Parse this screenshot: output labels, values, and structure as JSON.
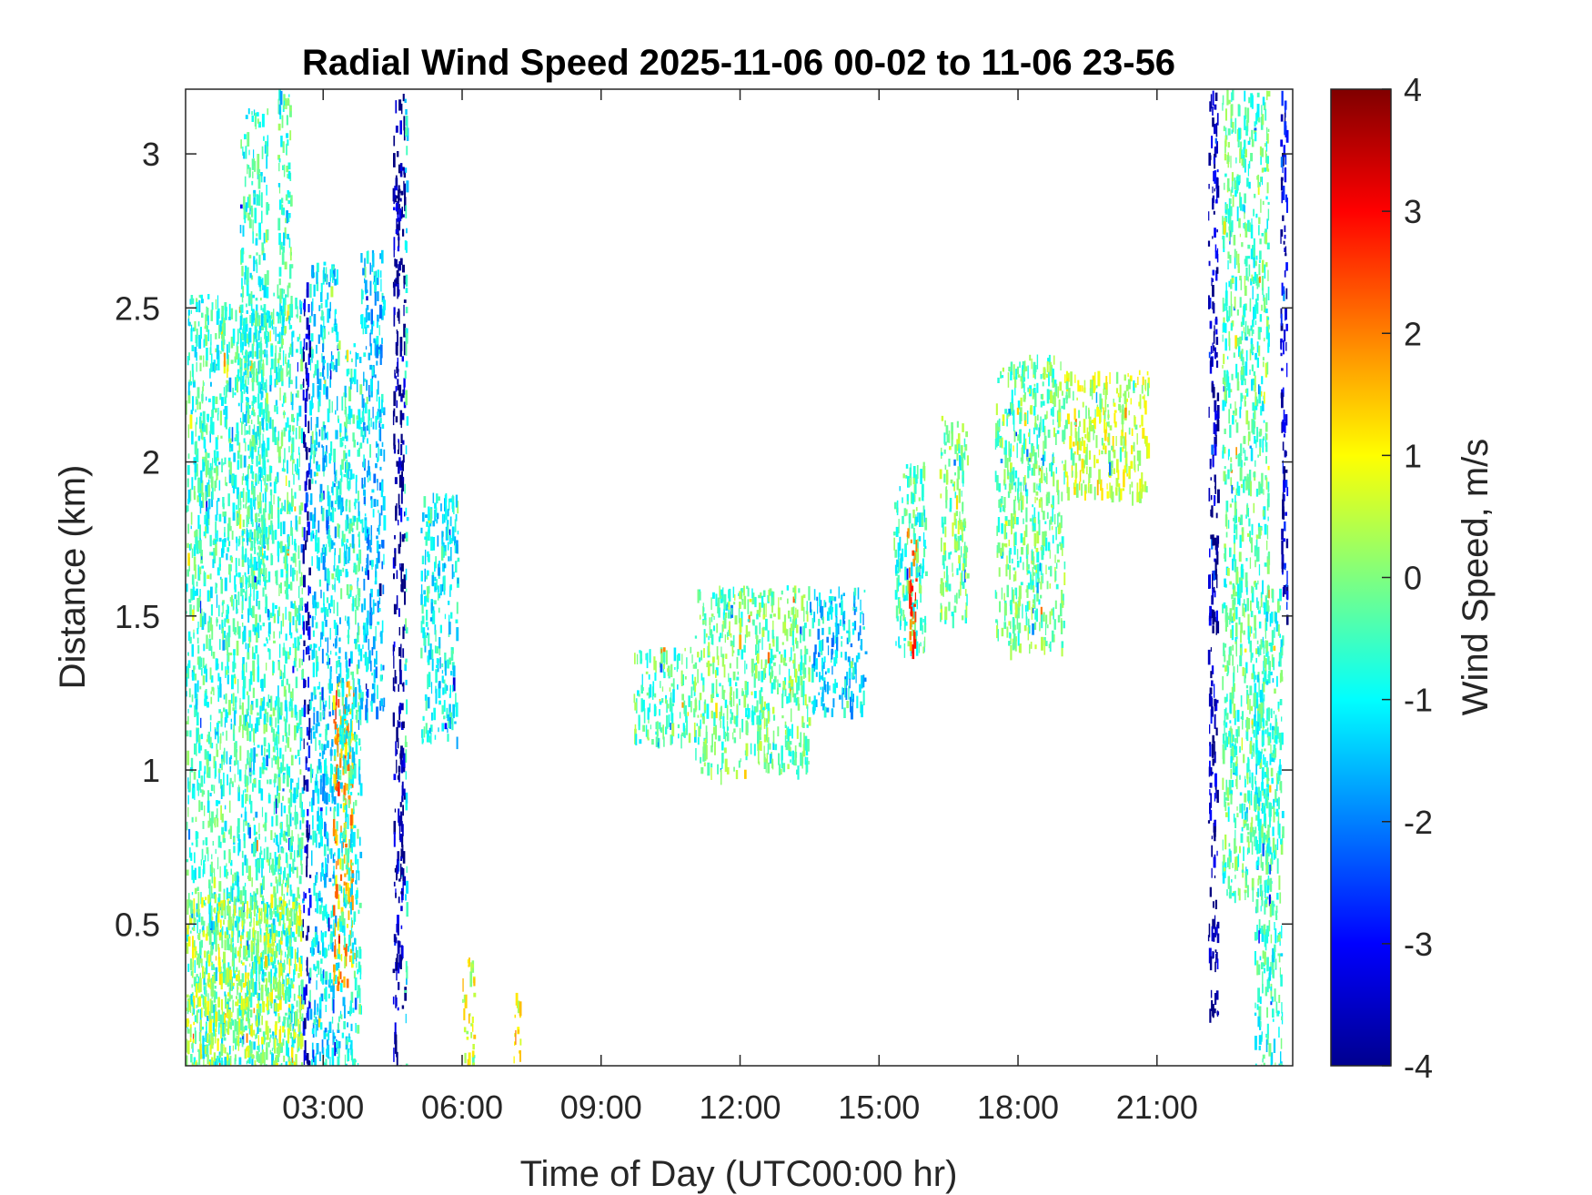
{
  "chart_data": {
    "type": "heatmap",
    "title": "Radial Wind Speed 2025-11-06 00-02 to 11-06 23-56",
    "xlabel": "Time of Day (UTC00:00 hr)",
    "ylabel": "Distance (km)",
    "xlim": [
      0.03,
      23.93
    ],
    "ylim": [
      0.04,
      3.21
    ],
    "x_ticks": [
      {
        "value": 3,
        "label": "03:00"
      },
      {
        "value": 6,
        "label": "06:00"
      },
      {
        "value": 9,
        "label": "09:00"
      },
      {
        "value": 12,
        "label": "12:00"
      },
      {
        "value": 15,
        "label": "15:00"
      },
      {
        "value": 18,
        "label": "18:00"
      },
      {
        "value": 21,
        "label": "21:00"
      }
    ],
    "y_ticks": [
      {
        "value": 0.5,
        "label": "0.5"
      },
      {
        "value": 1,
        "label": "1"
      },
      {
        "value": 1.5,
        "label": "1.5"
      },
      {
        "value": 2,
        "label": "2"
      },
      {
        "value": 2.5,
        "label": "2.5"
      },
      {
        "value": 3,
        "label": "3"
      }
    ],
    "colorbar": {
      "label": "Wind Speed, m/s",
      "colormap": "jet",
      "range": [
        -4,
        4
      ],
      "ticks": [
        {
          "value": 4,
          "label": "4"
        },
        {
          "value": 3,
          "label": "3"
        },
        {
          "value": 2,
          "label": "2"
        },
        {
          "value": 1,
          "label": "1"
        },
        {
          "value": 0,
          "label": "0"
        },
        {
          "value": -1,
          "label": "-1"
        },
        {
          "value": -2,
          "label": "-2"
        },
        {
          "value": -3,
          "label": "-3"
        },
        {
          "value": -4,
          "label": "-4"
        }
      ]
    },
    "regions": [
      {
        "t0": 0.03,
        "t1": 2.55,
        "d0": 0.04,
        "d1": 2.55,
        "speed": -0.6
      },
      {
        "t0": 0.03,
        "t1": 2.55,
        "d0": 0.04,
        "d1": 0.6,
        "speed": 0.4
      },
      {
        "t0": 1.2,
        "t1": 1.8,
        "d0": 1.6,
        "d1": 3.15,
        "speed": -0.7
      },
      {
        "t0": 2.0,
        "t1": 2.3,
        "d0": 2.3,
        "d1": 3.21,
        "speed": -0.5
      },
      {
        "t0": 2.55,
        "t1": 2.7,
        "d0": 0.04,
        "d1": 2.6,
        "speed": -3.4
      },
      {
        "t0": 2.7,
        "t1": 3.3,
        "d0": 0.04,
        "d1": 2.65,
        "speed": -1.2
      },
      {
        "t0": 3.2,
        "t1": 3.65,
        "d0": 0.3,
        "d1": 1.3,
        "speed": 1.6
      },
      {
        "t0": 3.3,
        "t1": 3.8,
        "d0": 0.04,
        "d1": 2.4,
        "speed": -0.8
      },
      {
        "t0": 3.8,
        "t1": 4.3,
        "d0": 1.2,
        "d1": 2.7,
        "speed": -1.4
      },
      {
        "t0": 4.5,
        "t1": 4.75,
        "d0": 0.04,
        "d1": 3.21,
        "speed": -3.8
      },
      {
        "t0": 4.75,
        "t1": 4.8,
        "d0": 0.04,
        "d1": 3.21,
        "speed": -0.8
      },
      {
        "t0": 5.1,
        "t1": 5.9,
        "d0": 1.1,
        "d1": 1.9,
        "speed": -1.0
      },
      {
        "t0": 6.0,
        "t1": 6.25,
        "d0": 0.04,
        "d1": 0.4,
        "speed": 0.8
      },
      {
        "t0": 7.1,
        "t1": 7.25,
        "d0": 0.04,
        "d1": 0.3,
        "speed": 0.9
      },
      {
        "t0": 9.7,
        "t1": 11.0,
        "d0": 1.1,
        "d1": 1.4,
        "speed": -0.4
      },
      {
        "t0": 11.0,
        "t1": 13.5,
        "d0": 1.0,
        "d1": 1.6,
        "speed": -0.2
      },
      {
        "t0": 13.5,
        "t1": 14.7,
        "d0": 1.2,
        "d1": 1.6,
        "speed": -1.3
      },
      {
        "t0": 15.3,
        "t1": 16.0,
        "d0": 1.4,
        "d1": 2.0,
        "speed": -0.5
      },
      {
        "t0": 15.6,
        "t1": 15.8,
        "d0": 1.4,
        "d1": 1.8,
        "speed": 2.3
      },
      {
        "t0": 16.3,
        "t1": 16.9,
        "d0": 1.5,
        "d1": 2.15,
        "speed": -0.1
      },
      {
        "t0": 17.5,
        "t1": 19.0,
        "d0": 1.4,
        "d1": 2.35,
        "speed": -0.2
      },
      {
        "t0": 19.0,
        "t1": 20.8,
        "d0": 1.9,
        "d1": 2.3,
        "speed": 0.5
      },
      {
        "t0": 22.1,
        "t1": 22.3,
        "d0": 0.2,
        "d1": 3.21,
        "speed": -3.6
      },
      {
        "t0": 22.4,
        "t1": 23.4,
        "d0": 0.6,
        "d1": 3.21,
        "speed": -0.4
      },
      {
        "t0": 23.1,
        "t1": 23.7,
        "d0": 0.04,
        "d1": 1.6,
        "speed": -0.6
      },
      {
        "t0": 23.65,
        "t1": 23.8,
        "d0": 1.5,
        "d1": 3.21,
        "speed": -3.3
      }
    ]
  }
}
